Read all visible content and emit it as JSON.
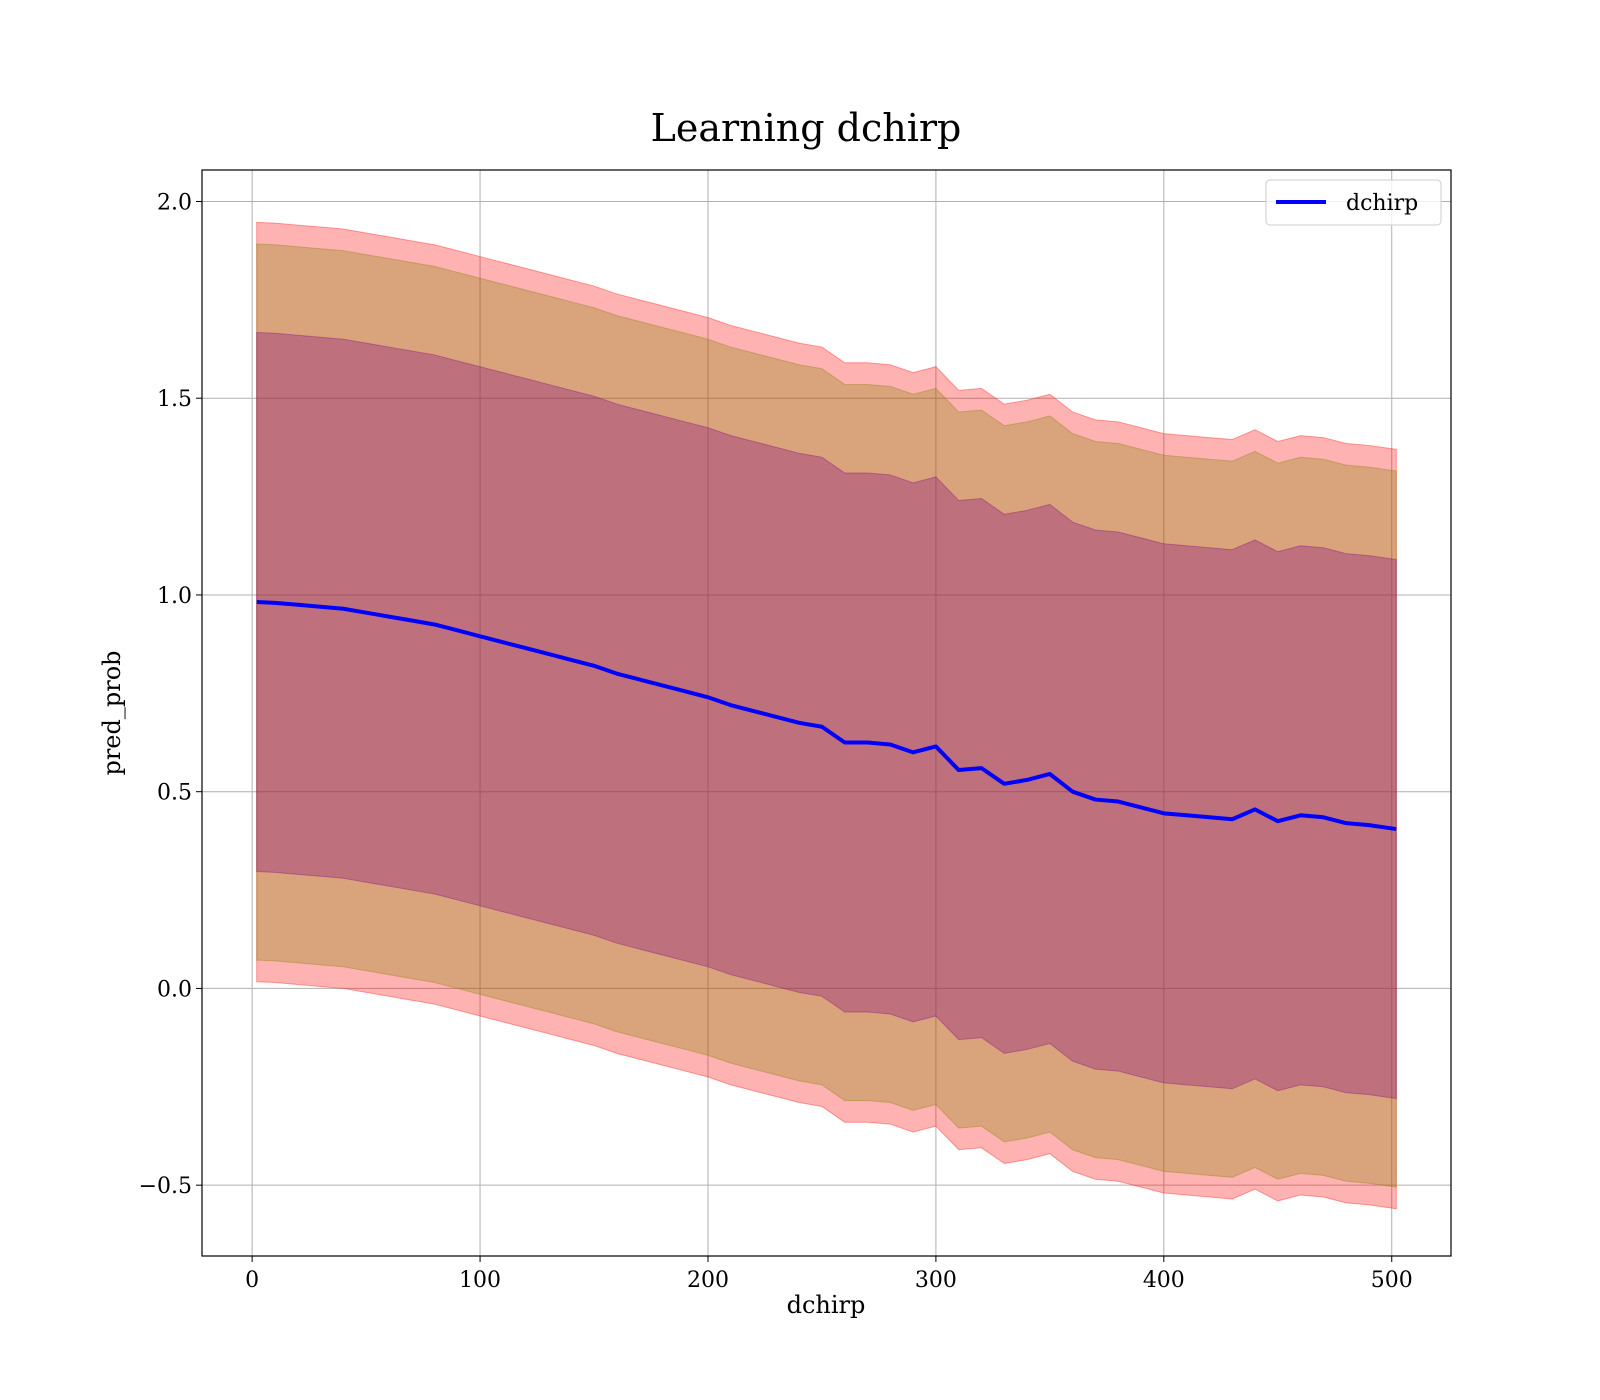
{
  "chart_data": {
    "type": "area",
    "title": "Learning dchirp",
    "xlabel": "dchirp",
    "ylabel": "pred_prob",
    "xlim": [
      -22,
      526
    ],
    "ylim": [
      -0.68,
      2.08
    ],
    "xticks": [
      0,
      100,
      200,
      300,
      400,
      500
    ],
    "yticks": [
      -0.5,
      0.0,
      0.5,
      1.0,
      1.5,
      2.0
    ],
    "xtick_labels": [
      "0",
      "100",
      "200",
      "300",
      "400",
      "500"
    ],
    "ytick_labels": [
      "−0.5",
      "0.0",
      "0.5",
      "1.0",
      "1.5",
      "2.0"
    ],
    "grid": true,
    "legend": {
      "position": "top-right",
      "entries": [
        "dchirp"
      ]
    },
    "colors": {
      "line": "#0000ff",
      "band_outer": "#ff0000",
      "band_middle": "#808000",
      "band_inner": "#800080"
    },
    "x": [
      2,
      10,
      20,
      30,
      40,
      50,
      60,
      70,
      80,
      90,
      100,
      110,
      120,
      130,
      140,
      150,
      160,
      170,
      180,
      190,
      200,
      210,
      220,
      230,
      240,
      250,
      260,
      270,
      280,
      290,
      300,
      310,
      320,
      330,
      340,
      350,
      360,
      370,
      380,
      390,
      400,
      410,
      420,
      430,
      440,
      450,
      460,
      470,
      480,
      490,
      502
    ],
    "series": [
      {
        "name": "dchirp",
        "values": [
          0.982,
          0.98,
          0.975,
          0.97,
          0.965,
          0.955,
          0.945,
          0.935,
          0.925,
          0.91,
          0.895,
          0.88,
          0.865,
          0.85,
          0.835,
          0.82,
          0.8,
          0.785,
          0.77,
          0.755,
          0.74,
          0.72,
          0.705,
          0.69,
          0.675,
          0.665,
          0.625,
          0.625,
          0.62,
          0.6,
          0.615,
          0.555,
          0.56,
          0.52,
          0.53,
          0.545,
          0.5,
          0.48,
          0.475,
          0.46,
          0.445,
          0.44,
          0.435,
          0.43,
          0.455,
          0.425,
          0.44,
          0.435,
          0.42,
          0.415,
          0.405
        ]
      }
    ],
    "bands": [
      {
        "sigma": 3,
        "offset": [
          0.965,
          0.965,
          0.965,
          0.965,
          0.965,
          0.965,
          0.965,
          0.965,
          0.965,
          0.965,
          0.965,
          0.965,
          0.965,
          0.965,
          0.965,
          0.965,
          0.965,
          0.965,
          0.965,
          0.965,
          0.965,
          0.965,
          0.965,
          0.965,
          0.965,
          0.965,
          0.965,
          0.965,
          0.965,
          0.965,
          0.965,
          0.965,
          0.965,
          0.965,
          0.965,
          0.965,
          0.965,
          0.965,
          0.965,
          0.965,
          0.965,
          0.965,
          0.965,
          0.965,
          0.965,
          0.965,
          0.965,
          0.965,
          0.965,
          0.965,
          0.965
        ]
      },
      {
        "sigma": 2,
        "offset": [
          0.91,
          0.91,
          0.91,
          0.91,
          0.91,
          0.91,
          0.91,
          0.91,
          0.91,
          0.91,
          0.91,
          0.91,
          0.91,
          0.91,
          0.91,
          0.91,
          0.91,
          0.91,
          0.91,
          0.91,
          0.91,
          0.91,
          0.91,
          0.91,
          0.91,
          0.91,
          0.91,
          0.91,
          0.91,
          0.91,
          0.91,
          0.91,
          0.91,
          0.91,
          0.91,
          0.91,
          0.91,
          0.91,
          0.91,
          0.91,
          0.91,
          0.91,
          0.91,
          0.91,
          0.91,
          0.91,
          0.91,
          0.91,
          0.91,
          0.91,
          0.91
        ]
      },
      {
        "sigma": 1,
        "offset": [
          0.685,
          0.685,
          0.685,
          0.685,
          0.685,
          0.685,
          0.685,
          0.685,
          0.685,
          0.685,
          0.685,
          0.685,
          0.685,
          0.685,
          0.685,
          0.685,
          0.685,
          0.685,
          0.685,
          0.685,
          0.685,
          0.685,
          0.685,
          0.685,
          0.685,
          0.685,
          0.685,
          0.685,
          0.685,
          0.685,
          0.685,
          0.685,
          0.685,
          0.685,
          0.685,
          0.685,
          0.685,
          0.685,
          0.685,
          0.685,
          0.685,
          0.685,
          0.685,
          0.685,
          0.685,
          0.685,
          0.685,
          0.685,
          0.685,
          0.685,
          0.685
        ]
      }
    ]
  }
}
